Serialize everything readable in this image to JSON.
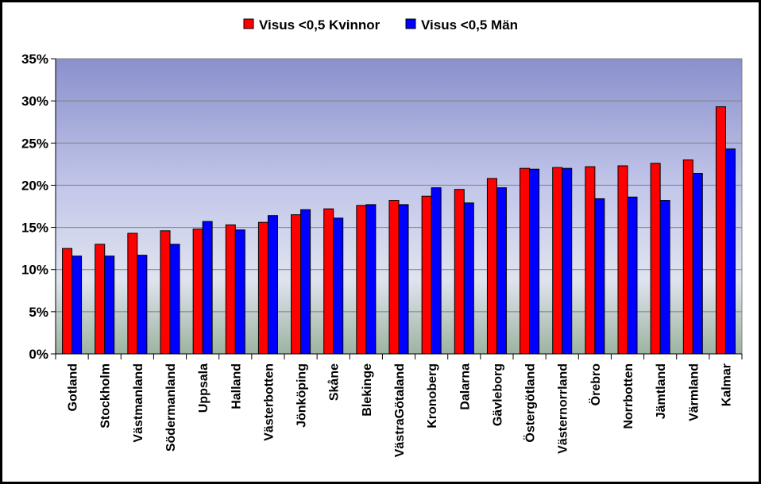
{
  "chart_data": {
    "type": "bar",
    "categories": [
      "Gotland",
      "Stockholm",
      "Västmanland",
      "Södermanland",
      "Uppsala",
      "Halland",
      "Västerbotten",
      "Jönköping",
      "Skåne",
      "Blekinge",
      "VästraGötaland",
      "Kronoberg",
      "Dalarna",
      "Gävleborg",
      "Östergötland",
      "Västernorrland",
      "Örebro",
      "Norrbotten",
      "Jämtland",
      "Värmland",
      "Kalmar"
    ],
    "series": [
      {
        "name": "Visus <0,5 Kvinnor",
        "color": "#ff0000",
        "values": [
          12.5,
          13.0,
          14.3,
          14.6,
          14.8,
          15.3,
          15.6,
          16.5,
          17.2,
          17.6,
          18.2,
          18.7,
          19.5,
          20.8,
          22.0,
          22.1,
          22.2,
          22.3,
          22.6,
          23.0,
          29.3
        ]
      },
      {
        "name": "Visus <0,5 Män",
        "color": "#0000ff",
        "values": [
          11.6,
          11.6,
          11.7,
          13.0,
          15.7,
          14.7,
          16.4,
          17.1,
          16.1,
          17.7,
          17.7,
          19.7,
          17.9,
          19.7,
          21.9,
          22.0,
          18.4,
          18.6,
          18.2,
          21.4,
          24.3
        ]
      }
    ],
    "ylim": [
      0,
      35
    ],
    "yticks": [
      "0%",
      "5%",
      "10%",
      "15%",
      "20%",
      "25%",
      "30%",
      "35%"
    ],
    "grid": true,
    "legend_position": "top"
  }
}
